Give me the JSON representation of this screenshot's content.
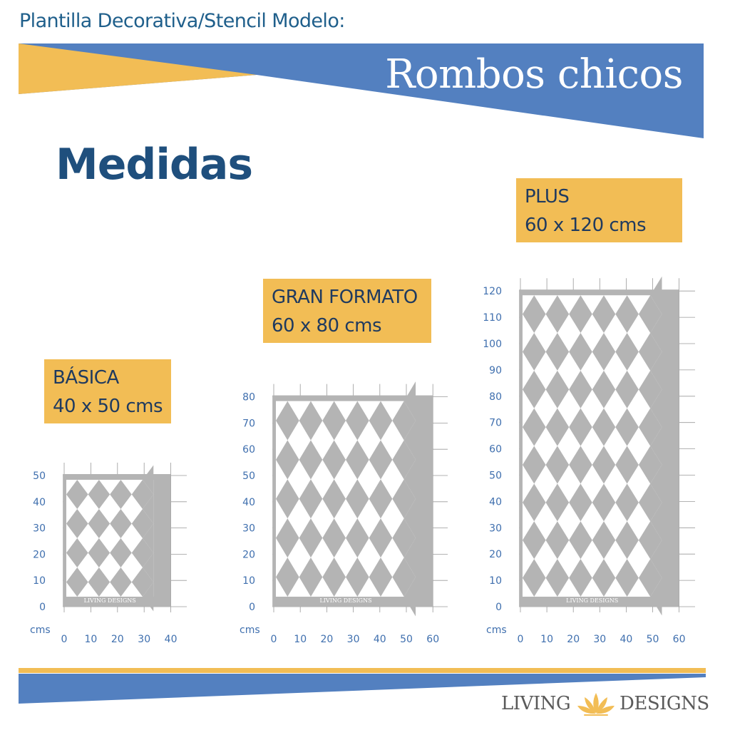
{
  "header": {
    "title": "Plantilla Decorativa/Stencil Modelo:",
    "model_name": "Rombos chicos"
  },
  "section_title": "Medidas",
  "colors": {
    "blue": "#5380c0",
    "yellow": "#f2bd55",
    "stencil_gray": "#b4b4b4",
    "tick_blue": "#3f6fae"
  },
  "sizes": [
    {
      "name": "BÁSICA",
      "dimensions": "40 x 50 cms"
    },
    {
      "name": "GRAN FORMATO",
      "dimensions": "60 x 80 cms"
    },
    {
      "name": "PLUS",
      "dimensions": "60 x 120 cms"
    }
  ],
  "chart_data": [
    {
      "type": "table",
      "unit_label": "cms",
      "x_ticks": [
        0,
        10,
        20,
        30,
        40
      ],
      "y_ticks": [
        0,
        10,
        20,
        30,
        40,
        50
      ],
      "width": 40,
      "height": 50,
      "diamond_rows": 4,
      "diamond_cols": 4
    },
    {
      "type": "table",
      "unit_label": "cms",
      "x_ticks": [
        0,
        10,
        20,
        30,
        40,
        50,
        60
      ],
      "y_ticks": [
        0,
        10,
        20,
        30,
        40,
        50,
        60,
        70,
        80
      ],
      "width": 60,
      "height": 80,
      "diamond_rows": 5,
      "diamond_cols": 6
    },
    {
      "type": "table",
      "unit_label": "cms",
      "x_ticks": [
        0,
        10,
        20,
        30,
        40,
        50,
        60
      ],
      "y_ticks": [
        0,
        10,
        20,
        30,
        40,
        50,
        60,
        70,
        80,
        90,
        100,
        110,
        120
      ],
      "width": 60,
      "height": 120,
      "diamond_rows": 8,
      "diamond_cols": 6
    }
  ],
  "watermark": "LIVING DESIGNS",
  "brand": {
    "left": "LIVING",
    "right": "DESIGNS",
    "logo_icon": "lotus-icon"
  }
}
